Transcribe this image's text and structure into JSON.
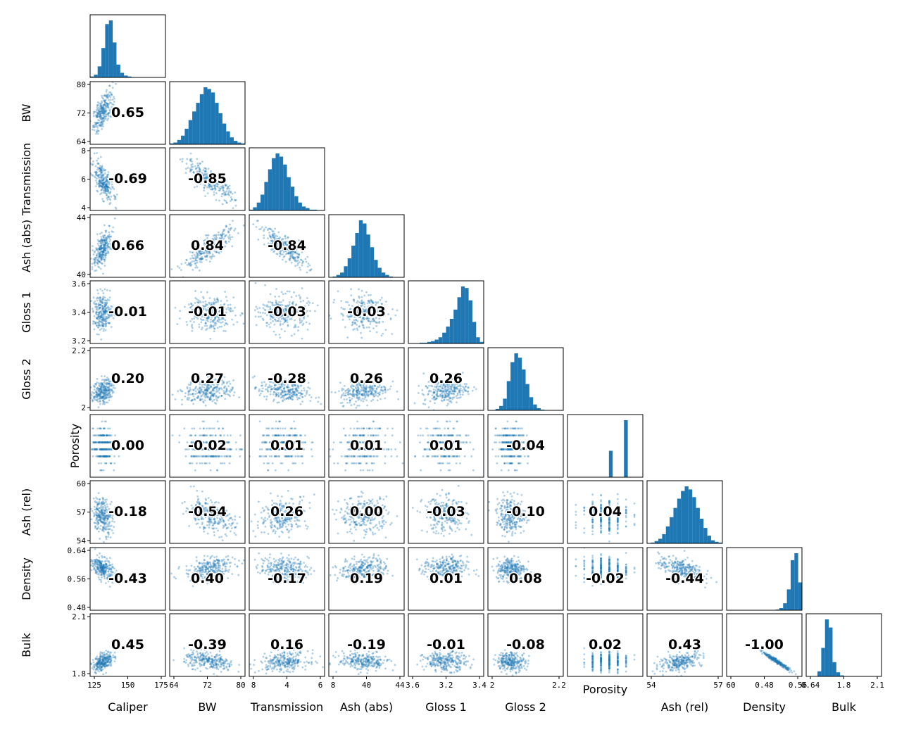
{
  "chart_data": {
    "type": "scatter",
    "subtype": "pair-plot-lower-triangle",
    "colors": {
      "marker": "#1f77b4",
      "axes": "#000000",
      "background": "#ffffff"
    },
    "variables": [
      {
        "name": "Caliper",
        "ticks": [
          "125",
          "150",
          "175"
        ],
        "tick_values": [
          125,
          150,
          175
        ],
        "range": [
          103,
          180
        ]
      },
      {
        "name": "BW",
        "ticks": [
          "64",
          "72",
          "80"
        ],
        "tick_values": [
          64,
          72,
          80
        ],
        "range": [
          64,
          82
        ]
      },
      {
        "name": "Transmission",
        "ticks": [
          "4",
          "6",
          "8"
        ],
        "tick_values": [
          4,
          6,
          8
        ],
        "range": [
          2.6,
          8.2
        ]
      },
      {
        "name": "Ash (abs)",
        "ticks": [
          "40",
          "44"
        ],
        "tick_values": [
          40,
          44
        ],
        "range": [
          37.8,
          45.8
        ]
      },
      {
        "name": "Gloss 1",
        "ticks": [
          "3.2",
          "3.4",
          "3.6"
        ],
        "tick_values": [
          3.2,
          3.4,
          3.6
        ],
        "range": [
          3.13,
          3.68
        ]
      },
      {
        "name": "Gloss 2",
        "ticks": [
          "2",
          "2.2"
        ],
        "tick_values": [
          2,
          2.2
        ],
        "range": [
          1.8,
          2.32
        ]
      },
      {
        "name": "Porosity",
        "ticks": [],
        "tick_values": [],
        "range": [
          0,
          9
        ],
        "levels": [
          1,
          2,
          3,
          4,
          5,
          6,
          7,
          8
        ]
      },
      {
        "name": "Ash (rel)",
        "ticks": [
          "54",
          "57",
          "60"
        ],
        "tick_values": [
          54,
          57,
          60
        ],
        "range": [
          51.8,
          60.8
        ]
      },
      {
        "name": "Density",
        "ticks": [
          "0.48",
          "0.56",
          "0.64"
        ],
        "tick_values": [
          0.48,
          0.56,
          0.64
        ],
        "range": [
          0.445,
          0.64
        ]
      },
      {
        "name": "Bulk",
        "ticks": [
          "1.8",
          "2.1"
        ],
        "tick_values": [
          1.8,
          2.1
        ],
        "range": [
          1.55,
          2.35
        ]
      }
    ],
    "x_tick_labels_shown": [
      [
        "125",
        "150",
        "175"
      ],
      [
        "64",
        "72",
        "80"
      ],
      [
        "8",
        "4",
        "6"
      ],
      [
        "8",
        "40",
        "44"
      ],
      [
        "3.6",
        "3.2",
        "3.4"
      ],
      [
        "2",
        "2.2"
      ],
      [],
      [
        "54",
        "57"
      ],
      [
        "60",
        "0.48",
        "0.56"
      ],
      [
        "0.64",
        "1.8",
        "2.1"
      ]
    ],
    "y_tick_labels_shown": [
      [],
      [
        "64",
        "72",
        "80"
      ],
      [
        "4",
        "6",
        "8"
      ],
      [
        "40",
        "44"
      ],
      [
        "3.2",
        "3.4",
        "3.6"
      ],
      [
        "2",
        "2.2"
      ],
      [],
      [
        "54",
        "57",
        "60"
      ],
      [
        "0.48",
        "0.56",
        "0.64"
      ],
      [
        "1.8",
        "2.1"
      ]
    ],
    "x_axis_labels": [
      "Caliper",
      "BW",
      "Transmission",
      "Ash (abs)",
      "Gloss 1",
      "Gloss 2",
      "Porosity",
      "Ash (rel)",
      "Density",
      "Bulk"
    ],
    "y_axis_labels": [
      "",
      "BW",
      "Transmission",
      "Ash (abs)",
      "Gloss 1",
      "Gloss 2",
      "Porosity",
      "Ash (rel)",
      "Density",
      "Bulk"
    ],
    "correlations": [
      [],
      [
        "0.65"
      ],
      [
        "-0.69",
        "-0.85"
      ],
      [
        "0.66",
        "0.84",
        "-0.84"
      ],
      [
        "-0.01",
        "-0.01",
        "-0.03",
        "-0.03"
      ],
      [
        "0.20",
        "0.27",
        "-0.28",
        "0.26",
        "0.26"
      ],
      [
        "0.00",
        "-0.02",
        "0.01",
        "0.01",
        "0.01",
        "-0.04"
      ],
      [
        "-0.18",
        "-0.54",
        "0.26",
        "0.00",
        "-0.03",
        "-0.10",
        "0.04"
      ],
      [
        "-0.43",
        "0.40",
        "-0.17",
        "0.19",
        "0.01",
        "0.08",
        "-0.02",
        "-0.44"
      ],
      [
        "0.45",
        "-0.39",
        "0.16",
        "-0.19",
        "-0.01",
        "-0.08",
        "0.02",
        "0.43",
        "-1.00"
      ]
    ],
    "histograms": [
      [
        1,
        3,
        12,
        32,
        58,
        62,
        38,
        14,
        5,
        2,
        1,
        0,
        0,
        0,
        0,
        0,
        0,
        0,
        0,
        0
      ],
      [
        1,
        2,
        5,
        10,
        18,
        28,
        38,
        48,
        58,
        66,
        64,
        60,
        48,
        36,
        24,
        15,
        8,
        4,
        2,
        1
      ],
      [
        1,
        4,
        10,
        20,
        36,
        52,
        66,
        72,
        68,
        58,
        42,
        30,
        18,
        10,
        5,
        3,
        1,
        1,
        0,
        0
      ],
      [
        0,
        1,
        3,
        6,
        14,
        24,
        40,
        56,
        72,
        68,
        54,
        38,
        22,
        12,
        6,
        3,
        1,
        0,
        0,
        0
      ],
      [
        0,
        0,
        0,
        1,
        1,
        2,
        3,
        5,
        8,
        14,
        22,
        32,
        44,
        60,
        74,
        72,
        56,
        28,
        8,
        2
      ],
      [
        0,
        0,
        2,
        6,
        16,
        40,
        66,
        78,
        72,
        56,
        36,
        18,
        8,
        3,
        1,
        0,
        0,
        0,
        0,
        0
      ],
      [
        0,
        0,
        0,
        0,
        0,
        0,
        0,
        0,
        0,
        0,
        0,
        38,
        0,
        0,
        0,
        82,
        0,
        0,
        0,
        0
      ],
      [
        0,
        1,
        3,
        6,
        12,
        22,
        34,
        46,
        58,
        68,
        74,
        70,
        60,
        46,
        32,
        20,
        10,
        4,
        2,
        1
      ],
      [
        0,
        0,
        0,
        0,
        0,
        0,
        0,
        0,
        0,
        0,
        0,
        0,
        0,
        1,
        3,
        10,
        30,
        72,
        82,
        40
      ],
      [
        0,
        0,
        0,
        5,
        28,
        56,
        48,
        14,
        4,
        1,
        0,
        0,
        0,
        0,
        0,
        0,
        0,
        0,
        0,
        0
      ]
    ]
  }
}
